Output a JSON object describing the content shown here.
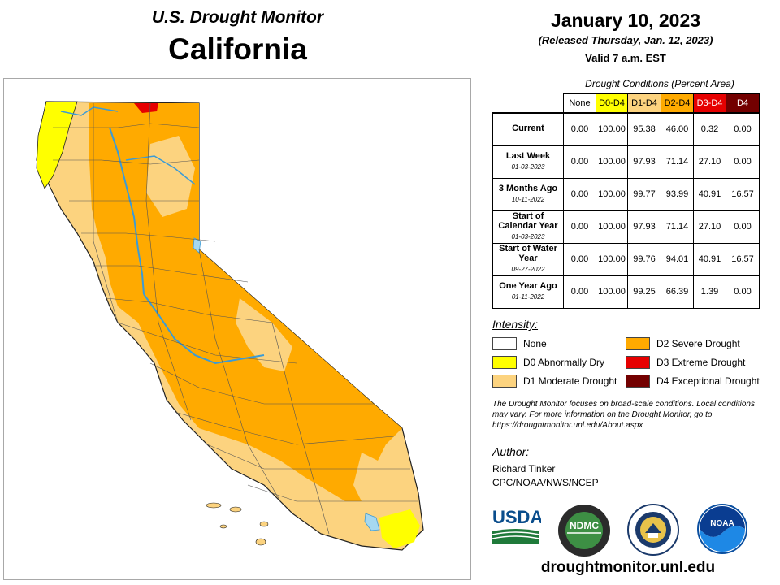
{
  "header": {
    "subtitle": "U.S. Drought Monitor",
    "state": "California",
    "date": "January 10, 2023",
    "released": "(Released Thursday, Jan. 12, 2023)",
    "valid": "Valid 7 a.m. EST"
  },
  "table": {
    "title": "Drought Conditions (Percent Area)",
    "columns": [
      "None",
      "D0-D4",
      "D1-D4",
      "D2-D4",
      "D3-D4",
      "D4"
    ],
    "rows": [
      {
        "label": "Current",
        "date": "",
        "values": [
          "0.00",
          "100.00",
          "95.38",
          "46.00",
          "0.32",
          "0.00"
        ]
      },
      {
        "label": "Last Week",
        "date": "01-03-2023",
        "values": [
          "0.00",
          "100.00",
          "97.93",
          "71.14",
          "27.10",
          "0.00"
        ]
      },
      {
        "label": "3 Months Ago",
        "date": "10-11-2022",
        "values": [
          "0.00",
          "100.00",
          "99.77",
          "93.99",
          "40.91",
          "16.57"
        ]
      },
      {
        "label": "Start of Calendar Year",
        "date": "01-03-2023",
        "values": [
          "0.00",
          "100.00",
          "97.93",
          "71.14",
          "27.10",
          "0.00"
        ]
      },
      {
        "label": "Start of Water Year",
        "date": "09-27-2022",
        "values": [
          "0.00",
          "100.00",
          "99.76",
          "94.01",
          "40.91",
          "16.57"
        ]
      },
      {
        "label": "One Year Ago",
        "date": "01-11-2022",
        "values": [
          "0.00",
          "100.00",
          "99.25",
          "66.39",
          "1.39",
          "0.00"
        ]
      }
    ]
  },
  "legend": {
    "title": "Intensity:",
    "items": [
      {
        "label": "None",
        "color": "#ffffff"
      },
      {
        "label": "D0 Abnormally Dry",
        "color": "#ffff00"
      },
      {
        "label": "D1 Moderate Drought",
        "color": "#fcd37f"
      },
      {
        "label": "D2 Severe Drought",
        "color": "#ffaa00"
      },
      {
        "label": "D3 Extreme Drought",
        "color": "#e60000"
      },
      {
        "label": "D4 Exceptional Drought",
        "color": "#730000"
      }
    ]
  },
  "note": "The Drought Monitor focuses on broad-scale conditions. Local conditions may vary. For more information on the Drought Monitor, go to https://droughtmonitor.unl.edu/About.aspx",
  "author": {
    "label": "Author:",
    "name": "Richard Tinker",
    "org": "CPC/NOAA/NWS/NCEP"
  },
  "logos": {
    "usda": "USDA",
    "ndmc": "NDMC",
    "noaa": "NOAA"
  },
  "url": "droughtmonitor.unl.edu",
  "map_colors": {
    "d0": "#ffff00",
    "d1": "#fcd37f",
    "d2": "#ffaa00",
    "d3": "#e60000",
    "water": "#a6d8f0",
    "river": "#3b9bd6",
    "county_line": "#555555"
  }
}
